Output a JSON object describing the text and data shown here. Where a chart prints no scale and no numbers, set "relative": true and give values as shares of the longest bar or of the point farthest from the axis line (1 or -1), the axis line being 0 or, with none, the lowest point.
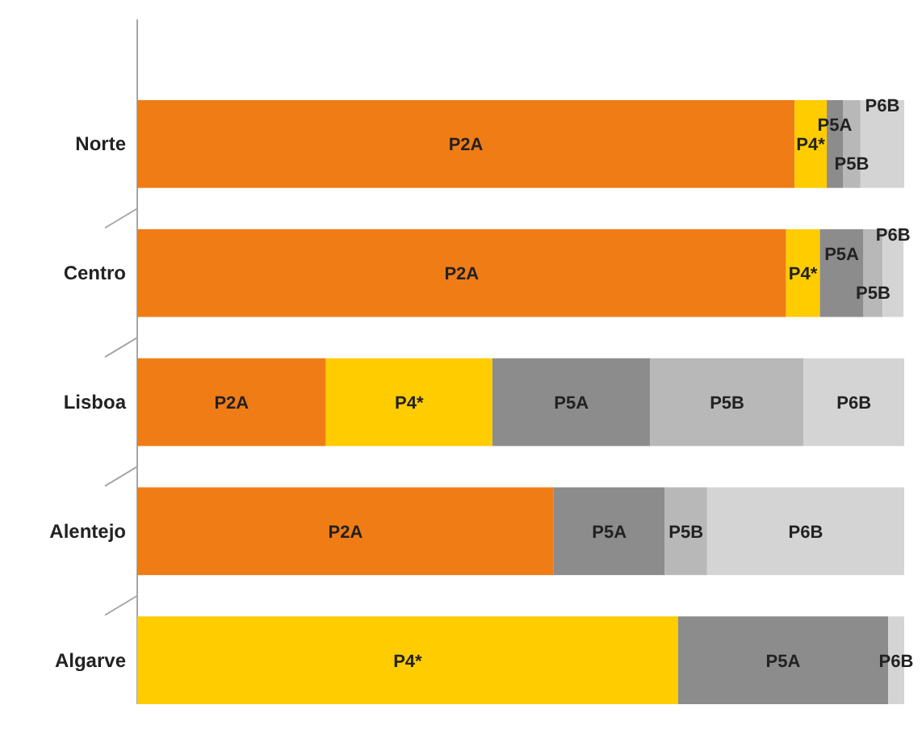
{
  "chart_data": {
    "type": "bar",
    "orientation": "horizontal",
    "stacked": true,
    "relative": true,
    "categories": [
      "Norte",
      "Centro",
      "Lisboa",
      "Alentejo",
      "Algarve"
    ],
    "series": [
      {
        "name": "P2A",
        "color": "#f07c16",
        "values": [
          0.857,
          0.846,
          0.246,
          0.543,
          null
        ]
      },
      {
        "name": "P4*",
        "color": "#ffcc00",
        "values": [
          0.042,
          0.044,
          0.217,
          null,
          0.705
        ]
      },
      {
        "name": "P5A",
        "color": "#8c8c8c",
        "values": [
          0.021,
          0.057,
          0.206,
          0.145,
          0.274
        ]
      },
      {
        "name": "P5B",
        "color": "#b8b8b8",
        "values": [
          0.023,
          0.025,
          0.2,
          0.055,
          null
        ]
      },
      {
        "name": "P6B",
        "color": "#d4d4d4",
        "values": [
          0.057,
          0.027,
          0.131,
          0.257,
          0.021
        ]
      }
    ]
  }
}
